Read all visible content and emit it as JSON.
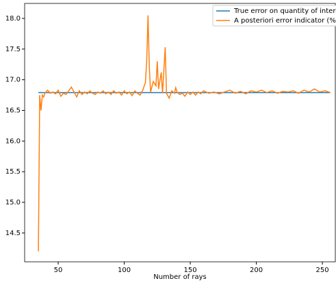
{
  "chart_data": {
    "type": "line",
    "xlabel": "Number of rays",
    "xlim": [
      24.6,
      259.8
    ],
    "xticks": [
      50,
      100,
      150,
      200,
      250
    ],
    "ylim": [
      14.03,
      18.245
    ],
    "yticks": [
      14.5,
      {
        "value": 15,
        "label": "15.0"
      },
      15.5,
      {
        "value": 16,
        "label": "16.0"
      },
      16.5,
      {
        "value": 17,
        "label": "17.0"
      },
      17.5,
      {
        "value": 18,
        "label": "18.0"
      }
    ],
    "legend": "upper right",
    "series": [
      {
        "name": "True error on quantity of interest (%",
        "color": "#1f77b4",
        "x": [
          35,
          256
        ],
        "values": [
          16.79,
          16.79
        ]
      },
      {
        "name": "A posteriori error indicator (%)",
        "color": "#ff7f0e",
        "x": [
          35,
          36,
          37,
          38,
          39,
          40,
          42,
          44,
          46,
          48,
          50,
          52,
          54,
          56,
          58,
          60,
          62,
          64,
          66,
          68,
          70,
          72,
          74,
          76,
          78,
          80,
          82,
          84,
          86,
          88,
          90,
          92,
          94,
          96,
          98,
          100,
          102,
          104,
          106,
          108,
          110,
          112,
          114,
          116,
          117,
          118,
          119,
          120,
          122,
          124,
          125,
          126,
          128,
          129,
          131,
          132,
          134,
          136,
          138,
          139,
          140,
          142,
          144,
          146,
          148,
          150,
          152,
          154,
          156,
          158,
          160,
          164,
          168,
          172,
          176,
          180,
          184,
          188,
          192,
          196,
          200,
          204,
          208,
          212,
          216,
          220,
          224,
          228,
          232,
          236,
          240,
          244,
          248,
          252,
          256
        ],
        "values": [
          14.2,
          16.75,
          16.5,
          16.75,
          16.72,
          16.78,
          16.83,
          16.78,
          16.8,
          16.77,
          16.83,
          16.73,
          16.78,
          16.76,
          16.82,
          16.88,
          16.8,
          16.72,
          16.82,
          16.76,
          16.8,
          16.77,
          16.82,
          16.78,
          16.76,
          16.8,
          16.78,
          16.82,
          16.77,
          16.8,
          16.76,
          16.82,
          16.78,
          16.8,
          16.75,
          16.82,
          16.77,
          16.8,
          16.74,
          16.82,
          16.78,
          16.75,
          16.83,
          16.95,
          17.3,
          18.05,
          17.2,
          16.8,
          16.97,
          16.9,
          17.3,
          16.85,
          17.12,
          16.78,
          17.53,
          16.78,
          16.7,
          16.82,
          16.78,
          16.87,
          16.8,
          16.76,
          16.78,
          16.73,
          16.8,
          16.76,
          16.8,
          16.75,
          16.8,
          16.77,
          16.82,
          16.78,
          16.8,
          16.77,
          16.8,
          16.83,
          16.78,
          16.81,
          16.77,
          16.82,
          16.8,
          16.83,
          16.79,
          16.82,
          16.78,
          16.81,
          16.8,
          16.82,
          16.78,
          16.83,
          16.8,
          16.85,
          16.8,
          16.82,
          16.79
        ]
      }
    ]
  }
}
